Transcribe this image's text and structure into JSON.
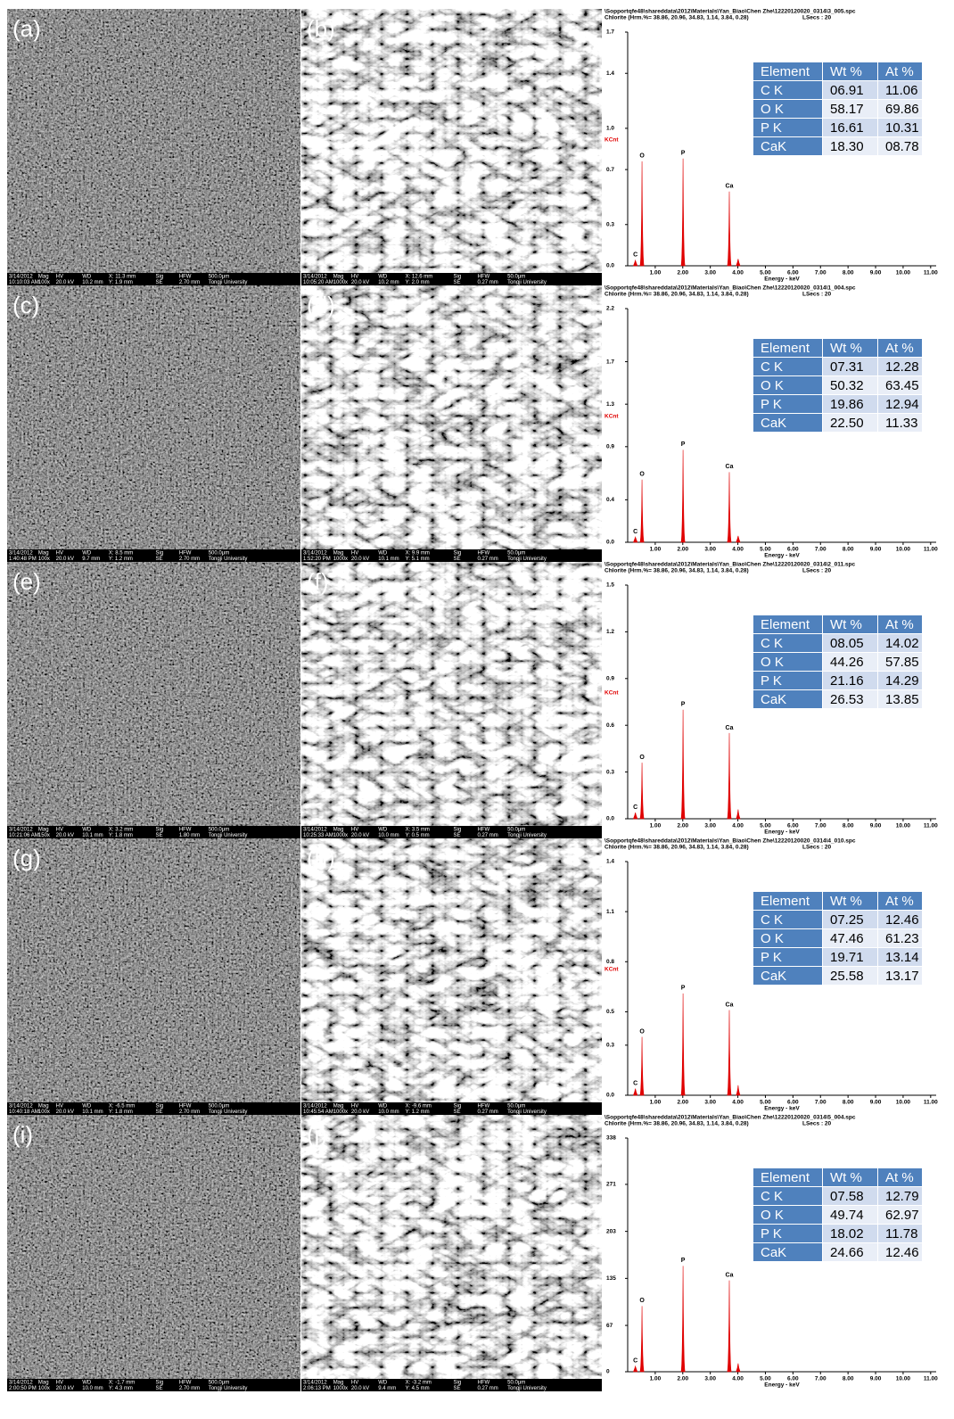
{
  "panels": [
    {
      "label": "(a)",
      "info": [
        [
          "3/14/2012",
          "Mag",
          "HV",
          "WD",
          "X: 11.3 mm",
          "Sig",
          "HFW",
          "500.0μm"
        ],
        [
          "10:10:03 AM",
          "100x",
          "20.0 kV",
          "10.2 mm",
          "Y: 1.9 mm",
          "SE",
          "2.70 mm",
          "Tongji University"
        ]
      ]
    },
    {
      "label": "(b)",
      "info": [
        [
          "3/14/2012",
          "Mag",
          "HV",
          "WD",
          "X: 12.6 mm",
          "Sig",
          "HFW",
          "50.0μm"
        ],
        [
          "10:05:20 AM",
          "1000x",
          "20.0 kV",
          "10.2 mm",
          "Y: 2.0 mm",
          "SE",
          "0.27 mm",
          "Tongji University"
        ]
      ]
    },
    {
      "label": "(c)",
      "info": [
        [
          "3/14/2012",
          "Mag",
          "HV",
          "WD",
          "X: 8.5 mm",
          "Sig",
          "HFW",
          "500.0μm"
        ],
        [
          "1:40:48 PM",
          "100x",
          "20.0 kV",
          "9.7 mm",
          "Y: 1.2 mm",
          "SE",
          "2.70 mm",
          "Tongji University"
        ]
      ]
    },
    {
      "label": "(d)",
      "info": [
        [
          "3/14/2012",
          "Mag",
          "HV",
          "WD",
          "X: 9.9 mm",
          "Sig",
          "HFW",
          "50.0μm"
        ],
        [
          "1:52:20 PM",
          "1000x",
          "20.0 kV",
          "10.1 mm",
          "Y: 5.1 mm",
          "SE",
          "0.27 mm",
          "Tongji University"
        ]
      ]
    },
    {
      "label": "(e)",
      "info": [
        [
          "3/14/2012",
          "Mag",
          "HV",
          "WD",
          "X: 3.2 mm",
          "Sig",
          "HFW",
          "500.0μm"
        ],
        [
          "10:21:06 AM",
          "150x",
          "20.0 kV",
          "10.1 mm",
          "Y: 1.8 mm",
          "SE",
          "1.80 mm",
          "Tongji University"
        ]
      ]
    },
    {
      "label": "(f)",
      "info": [
        [
          "3/14/2012",
          "Mag",
          "HV",
          "WD",
          "X: 3.5 mm",
          "Sig",
          "HFW",
          "50.0μm"
        ],
        [
          "10:25:33 AM",
          "1000x",
          "20.0 kV",
          "10.0 mm",
          "Y: 0.5 mm",
          "SE",
          "0.27 mm",
          "Tongji University"
        ]
      ]
    },
    {
      "label": "(g)",
      "info": [
        [
          "3/14/2012",
          "Mag",
          "HV",
          "WD",
          "X: -6.5 mm",
          "Sig",
          "HFW",
          "500.0μm"
        ],
        [
          "10:40:18 AM",
          "100x",
          "20.0 kV",
          "10.1 mm",
          "Y: 1.8 mm",
          "SE",
          "2.70 mm",
          "Tongji University"
        ]
      ]
    },
    {
      "label": "(h)",
      "info": [
        [
          "3/14/2012",
          "Mag",
          "HV",
          "WD",
          "X: -9.6 mm",
          "Sig",
          "HFW",
          "50.0μm"
        ],
        [
          "10:45:54 AM",
          "1000x",
          "20.0 kV",
          "10.0 mm",
          "Y: 1.2 mm",
          "SE",
          "0.27 mm",
          "Tongji University"
        ]
      ]
    },
    {
      "label": "(i)",
      "info": [
        [
          "3/14/2012",
          "Mag",
          "HV",
          "WD",
          "X: -1.7 mm",
          "Sig",
          "HFW",
          "500.0μm"
        ],
        [
          "2:00:50 PM",
          "100x",
          "20.0 kV",
          "10.0 mm",
          "Y: 4.3 mm",
          "SE",
          "2.70 mm",
          "Tongji University"
        ]
      ]
    },
    {
      "label": "(j)",
      "info": [
        [
          "3/14/2012",
          "Mag",
          "HV",
          "WD",
          "X: -3.2 mm",
          "Sig",
          "HFW",
          "50.0μm"
        ],
        [
          "2:06:13 PM",
          "1000x",
          "20.0 kV",
          "9.4 mm",
          "Y: 4.5 mm",
          "SE",
          "0.27 mm",
          "Tongji University"
        ]
      ]
    }
  ],
  "chart_data": [
    {
      "type": "spectrum",
      "header": [
        "\\Sopportqfe48\\shareddata\\2012\\Materials\\Yan_Biao\\Chen Zhe\\12220120020_0314\\3_005.spc",
        "Chlorite (Hrm.%= 38.86, 20.96, 34.83, 1.14, 3.84, 0.28)"
      ],
      "live_time": "LSecs : 20",
      "ylabel": "KCnt",
      "xlabel": "Energy - keV",
      "color": "#e00000",
      "xlim": [
        0,
        11.2
      ],
      "xticks": [
        {
          "value": 1,
          "label": "1.00"
        },
        {
          "value": 2,
          "label": "2.00"
        },
        {
          "value": 3,
          "label": "3.00"
        },
        {
          "value": 4,
          "label": "4.00"
        },
        {
          "value": 5,
          "label": "5.00"
        },
        {
          "value": 6,
          "label": "6.00"
        },
        {
          "value": 7,
          "label": "7.00"
        },
        {
          "value": 8,
          "label": "8.00"
        },
        {
          "value": 9,
          "label": "9.00"
        },
        {
          "value": 10,
          "label": "10.00"
        },
        {
          "value": 11,
          "label": "11.00"
        }
      ],
      "ylim": [
        0,
        1.7
      ],
      "yticks": [
        {
          "value": 0,
          "label": "0.0"
        },
        0.3,
        0.7,
        {
          "value": 1,
          "label": "1.0"
        },
        1.4,
        1.7
      ],
      "peaks": {
        "labels": [
          "C",
          "O",
          "P",
          "Ca",
          null
        ],
        "x": [
          0.28,
          0.52,
          2.01,
          3.69,
          4.01
        ],
        "values": [
          0.04,
          0.76,
          0.78,
          0.54,
          0.05
        ]
      },
      "table": {
        "header": [
          "Element",
          "Wt %",
          "At %"
        ],
        "rows": [
          [
            "C K",
            "06.91",
            "11.06"
          ],
          [
            "O K",
            "58.17",
            "69.86"
          ],
          [
            "P K",
            "16.61",
            "10.31"
          ],
          [
            "CaK",
            "18.30",
            "08.78"
          ]
        ]
      }
    },
    {
      "type": "spectrum",
      "header": [
        "\\Sopportqfe48\\shareddata\\2012\\Materials\\Yan_Biao\\Chen Zhe\\12220120020_0314\\1_004.spc",
        "Chlorite (Hrm.%= 38.86, 20.96, 34.83, 1.14, 3.84, 0.28)"
      ],
      "live_time": "LSecs : 20",
      "ylabel": "KCnt",
      "xlabel": "Energy - keV",
      "color": "#e00000",
      "xlim": [
        0,
        11.2
      ],
      "xticks": [
        {
          "value": 1,
          "label": "1.00"
        },
        {
          "value": 2,
          "label": "2.00"
        },
        {
          "value": 3,
          "label": "3.00"
        },
        {
          "value": 4,
          "label": "4.00"
        },
        {
          "value": 5,
          "label": "5.00"
        },
        {
          "value": 6,
          "label": "6.00"
        },
        {
          "value": 7,
          "label": "7.00"
        },
        {
          "value": 8,
          "label": "8.00"
        },
        {
          "value": 9,
          "label": "9.00"
        },
        {
          "value": 10,
          "label": "10.00"
        },
        {
          "value": 11,
          "label": "11.00"
        }
      ],
      "ylim": [
        0,
        2.2
      ],
      "yticks": [
        {
          "value": 0,
          "label": "0.0"
        },
        0.4,
        0.9,
        1.3,
        1.7,
        2.2
      ],
      "peaks": {
        "labels": [
          "C",
          "O",
          "P",
          "Ca",
          null
        ],
        "x": [
          0.28,
          0.52,
          2.01,
          3.69,
          4.01
        ],
        "values": [
          0.05,
          0.59,
          0.87,
          0.66,
          0.06
        ]
      },
      "table": {
        "header": [
          "Element",
          "Wt %",
          "At %"
        ],
        "rows": [
          [
            "C K",
            "07.31",
            "12.28"
          ],
          [
            "O K",
            "50.32",
            "63.45"
          ],
          [
            "P K",
            "19.86",
            "12.94"
          ],
          [
            "CaK",
            "22.50",
            "11.33"
          ]
        ]
      }
    },
    {
      "type": "spectrum",
      "header": [
        "\\Sopportqfe48\\shareddata\\2012\\Materials\\Yan_Biao\\Chen Zhe\\12220120020_0314\\2_011.spc",
        "Chlorite (Hrm.%= 38.86, 20.96, 34.83, 1.14, 3.84, 0.28)"
      ],
      "live_time": "LSecs : 20",
      "ylabel": "KCnt",
      "xlabel": "Energy - keV",
      "color": "#e00000",
      "xlim": [
        0,
        11.2
      ],
      "xticks": [
        {
          "value": 1,
          "label": "1.00"
        },
        {
          "value": 2,
          "label": "2.00"
        },
        {
          "value": 3,
          "label": "3.00"
        },
        {
          "value": 4,
          "label": "4.00"
        },
        {
          "value": 5,
          "label": "5.00"
        },
        {
          "value": 6,
          "label": "6.00"
        },
        {
          "value": 7,
          "label": "7.00"
        },
        {
          "value": 8,
          "label": "8.00"
        },
        {
          "value": 9,
          "label": "9.00"
        },
        {
          "value": 10,
          "label": "10.00"
        },
        {
          "value": 11,
          "label": "11.00"
        }
      ],
      "ylim": [
        0,
        1.5
      ],
      "yticks": [
        {
          "value": 0,
          "label": "0.0"
        },
        0.3,
        0.6,
        0.9,
        1.2,
        1.5
      ],
      "peaks": {
        "labels": [
          "C",
          "O",
          "P",
          "Ca",
          null
        ],
        "x": [
          0.28,
          0.52,
          2.01,
          3.69,
          4.01
        ],
        "values": [
          0.04,
          0.36,
          0.7,
          0.55,
          0.06
        ]
      },
      "table": {
        "header": [
          "Element",
          "Wt %",
          "At %"
        ],
        "rows": [
          [
            "C K",
            "08.05",
            "14.02"
          ],
          [
            "O K",
            "44.26",
            "57.85"
          ],
          [
            "P K",
            "21.16",
            "14.29"
          ],
          [
            "CaK",
            "26.53",
            "13.85"
          ]
        ]
      }
    },
    {
      "type": "spectrum",
      "header": [
        "\\Sopportqfe48\\shareddata\\2012\\Materials\\Yan_Biao\\Chen Zhe\\12220120020_0314\\4_010.spc",
        "Chlorite (Hrm.%= 38.86, 20.96, 34.83, 1.14, 3.84, 0.28)"
      ],
      "live_time": "LSecs : 20",
      "ylabel": "KCnt",
      "xlabel": "Energy - keV",
      "color": "#e00000",
      "xlim": [
        0,
        11.2
      ],
      "xticks": [
        {
          "value": 1,
          "label": "1.00"
        },
        {
          "value": 2,
          "label": "2.00"
        },
        {
          "value": 3,
          "label": "3.00"
        },
        {
          "value": 4,
          "label": "4.00"
        },
        {
          "value": 5,
          "label": "5.00"
        },
        {
          "value": 6,
          "label": "6.00"
        },
        {
          "value": 7,
          "label": "7.00"
        },
        {
          "value": 8,
          "label": "8.00"
        },
        {
          "value": 9,
          "label": "9.00"
        },
        {
          "value": 10,
          "label": "10.00"
        },
        {
          "value": 11,
          "label": "11.00"
        }
      ],
      "ylim": [
        0,
        1.4
      ],
      "yticks": [
        {
          "value": 0,
          "label": "0.0"
        },
        0.3,
        0.5,
        0.8,
        1.1,
        1.4
      ],
      "peaks": {
        "labels": [
          "C",
          "O",
          "P",
          "Ca",
          null
        ],
        "x": [
          0.28,
          0.52,
          2.01,
          3.69,
          4.01
        ],
        "values": [
          0.04,
          0.35,
          0.61,
          0.51,
          0.06
        ]
      },
      "table": {
        "header": [
          "Element",
          "Wt %",
          "At %"
        ],
        "rows": [
          [
            "C K",
            "07.25",
            "12.46"
          ],
          [
            "O K",
            "47.46",
            "61.23"
          ],
          [
            "P K",
            "19.71",
            "13.14"
          ],
          [
            "CaK",
            "25.58",
            "13.17"
          ]
        ]
      }
    },
    {
      "type": "spectrum",
      "header": [
        "\\Sopportqfe48\\shareddata\\2012\\Materials\\Yan_Biao\\Chen Zhe\\12220120020_0314\\5_004.spc",
        "Chlorite (Hrm.%= 38.86, 20.96, 34.83, 1.14, 3.84, 0.28)"
      ],
      "live_time": "LSecs : 20",
      "xlabel": "Energy - keV",
      "color": "#e00000",
      "xlim": [
        0,
        11.2
      ],
      "xticks": [
        {
          "value": 1,
          "label": "1.00"
        },
        {
          "value": 2,
          "label": "2.00"
        },
        {
          "value": 3,
          "label": "3.00"
        },
        {
          "value": 4,
          "label": "4.00"
        },
        {
          "value": 5,
          "label": "5.00"
        },
        {
          "value": 6,
          "label": "6.00"
        },
        {
          "value": 7,
          "label": "7.00"
        },
        {
          "value": 8,
          "label": "8.00"
        },
        {
          "value": 9,
          "label": "9.00"
        },
        {
          "value": 10,
          "label": "10.00"
        },
        {
          "value": 11,
          "label": "11.00"
        }
      ],
      "ylim": [
        0,
        338
      ],
      "yticks": [
        0,
        67,
        135,
        203,
        271,
        338
      ],
      "peaks": {
        "labels": [
          "C",
          "O",
          "P",
          "Ca",
          null
        ],
        "x": [
          0.28,
          0.52,
          2.01,
          3.69,
          4.01
        ],
        "values": [
          8,
          95,
          153,
          132,
          12
        ]
      },
      "table": {
        "header": [
          "Element",
          "Wt %",
          "At %"
        ],
        "rows": [
          [
            "C K",
            "07.58",
            "12.79"
          ],
          [
            "O K",
            "49.74",
            "62.97"
          ],
          [
            "P K",
            "18.02",
            "11.78"
          ],
          [
            "CaK",
            "24.66",
            "12.46"
          ]
        ]
      }
    }
  ]
}
